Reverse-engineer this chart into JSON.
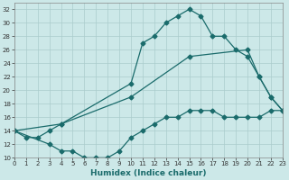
{
  "xlabel": "Humidex (Indice chaleur)",
  "bg_color": "#cce8e8",
  "grid_color": "#aacccc",
  "line_color": "#1a6b6b",
  "series": [
    {
      "x": [
        0,
        1,
        2,
        3,
        4,
        10,
        11,
        12,
        13,
        14,
        15,
        16,
        17,
        18,
        19,
        20,
        21,
        22,
        23
      ],
      "y": [
        14,
        13,
        13,
        14,
        15,
        21,
        27,
        28,
        30,
        31,
        32,
        31,
        28,
        28,
        26,
        25,
        22,
        19,
        17
      ]
    },
    {
      "x": [
        0,
        4,
        10,
        15,
        20,
        21,
        22,
        23
      ],
      "y": [
        14,
        15,
        19,
        25,
        26,
        22,
        19,
        17
      ]
    },
    {
      "x": [
        0,
        3,
        4,
        5,
        6,
        7,
        8,
        9,
        10,
        11,
        12,
        13,
        14,
        15,
        16,
        17,
        18,
        19,
        20,
        21,
        22,
        23
      ],
      "y": [
        14,
        12,
        11,
        11,
        10,
        10,
        10,
        11,
        13,
        14,
        15,
        16,
        16,
        17,
        17,
        17,
        16,
        16,
        16,
        16,
        17,
        17
      ]
    }
  ],
  "xlim": [
    0,
    23
  ],
  "ylim": [
    10,
    33
  ],
  "yticks": [
    10,
    12,
    14,
    16,
    18,
    20,
    22,
    24,
    26,
    28,
    30,
    32
  ],
  "xticks": [
    0,
    1,
    2,
    3,
    4,
    5,
    6,
    7,
    8,
    9,
    10,
    11,
    12,
    13,
    14,
    15,
    16,
    17,
    18,
    19,
    20,
    21,
    22,
    23
  ],
  "tick_color": "#333333",
  "xlabel_color": "#1a6b6b",
  "xlabel_fontsize": 6.5,
  "tick_fontsize": 5.0,
  "marker_size": 2.5,
  "linewidth": 0.9
}
